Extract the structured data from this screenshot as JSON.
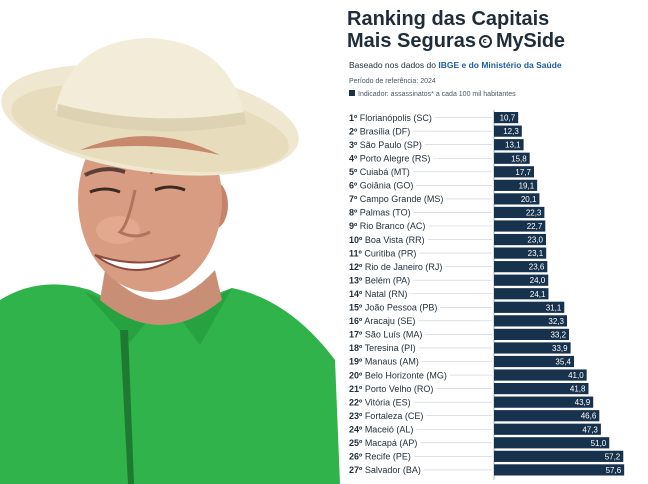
{
  "title_line1": "Ranking das Capitais",
  "title_line2": "Mais Seguras",
  "brand": "MySide",
  "subtitle_prefix": "Baseado nos dados do",
  "subtitle_highlight": "IBGE e do Ministério da Saúde",
  "period": "Período de referência: 2024",
  "indicator": "Indicador: assassinatos* a cada 100 mil habitantes",
  "colors": {
    "bar": "#17324d",
    "title": "#1f2d3a",
    "highlight": "#1f5c9e",
    "shirt": "#2fb34a",
    "hat": "#efe7cf"
  },
  "chart_data": {
    "type": "bar",
    "orientation": "horizontal",
    "categories": [
      "1º Florianópolis (SC)",
      "2º Brasília (DF)",
      "3º São Paulo (SP)",
      "4º Porto Alegre (RS)",
      "5º Cuiabá (MT)",
      "6º Goiânia (GO)",
      "7º Campo Grande (MS)",
      "8º Palmas (TO)",
      "9º Rio Branco (AC)",
      "10º Boa Vista (RR)",
      "11º Curitiba (PR)",
      "12º Rio de Janeiro (RJ)",
      "13º Belém (PA)",
      "14º Natal (RN)",
      "15º João Pessoa (PB)",
      "16º Aracaju (SE)",
      "17º São Luís (MA)",
      "18º Teresina (PI)",
      "19º Manaus (AM)",
      "20º Belo Horizonte (MG)",
      "21º Porto Velho (RO)",
      "22º Vitória (ES)",
      "23º Fortaleza (CE)",
      "24º Maceió (AL)",
      "25º Macapá (AP)",
      "26º Recife (PE)",
      "27º Salvador (BA)"
    ],
    "values": [
      10.7,
      12.3,
      13.1,
      15.8,
      17.7,
      19.1,
      20.1,
      22.3,
      22.7,
      23.0,
      23.1,
      23.6,
      24.0,
      24.1,
      31.1,
      32.3,
      33.2,
      33.9,
      35.4,
      41.0,
      41.8,
      43.9,
      46.6,
      47.3,
      51.0,
      57.2,
      57.6
    ],
    "value_labels": [
      "10,7",
      "12,3",
      "13,1",
      "15,8",
      "17,7",
      "19,1",
      "20,1",
      "22,3",
      "22,7",
      "23,0",
      "23,1",
      "23,6",
      "24,0",
      "24,1",
      "31,1",
      "32,3",
      "33,2",
      "33,9",
      "35,4",
      "41,0",
      "41,8",
      "43,9",
      "46,6",
      "47,3",
      "51,0",
      "57,2",
      "57,6"
    ],
    "title": "Ranking das Capitais Mais Seguras",
    "grid": false
  }
}
